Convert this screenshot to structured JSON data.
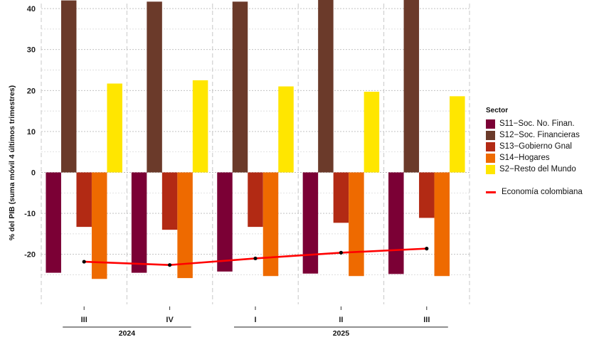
{
  "chart_data": {
    "type": "bar",
    "ylabel": "% del PIB (suma móvil 4 últimos trimestres)",
    "ylim": [
      -27,
      45
    ],
    "yticks": [
      -20,
      -10,
      0,
      10,
      20,
      30,
      40
    ],
    "grid": true,
    "legend_position": "right",
    "categories": [
      "III",
      "IV",
      "I",
      "II",
      "III"
    ],
    "year_groups": [
      {
        "label": "2024",
        "categories": [
          0,
          1
        ]
      },
      {
        "label": "2025",
        "categories": [
          2,
          3,
          4
        ]
      }
    ],
    "legend_title": "Sector",
    "series": [
      {
        "name": "S11−Soc. No. Finan.",
        "color": "#7b0035",
        "values": [
          -24.5,
          -24.5,
          -24.2,
          -24.7,
          -24.8
        ]
      },
      {
        "name": "S12−Soc. Financieras",
        "color": "#6b3a2a",
        "values": [
          42.0,
          41.7,
          41.7,
          42.5,
          42.7
        ]
      },
      {
        "name": "S13−Gobierno Gnal",
        "color": "#b22a14",
        "values": [
          -13.3,
          -14.0,
          -13.3,
          -12.3,
          -11.1
        ]
      },
      {
        "name": "S14−Hogares",
        "color": "#ee6a00",
        "values": [
          -26.0,
          -25.8,
          -25.3,
          -25.3,
          -25.3
        ]
      },
      {
        "name": "S2−Resto del Mundo",
        "color": "#ffe600",
        "values": [
          21.7,
          22.5,
          21.0,
          19.7,
          18.6
        ]
      }
    ],
    "line_series": {
      "name": "Economía colombiana",
      "color": "#ff0000",
      "values": [
        -21.8,
        -22.6,
        -21.0,
        -19.6,
        -18.6
      ]
    }
  }
}
